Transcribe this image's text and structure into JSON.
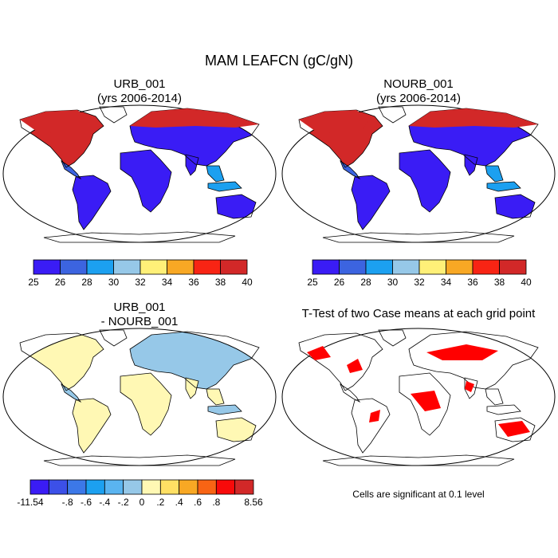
{
  "title": "MAM LEAFCN (gC/gN)",
  "chart_data": [
    {
      "type": "heatmap",
      "title": "URB_001",
      "subtitle": "(yrs 2006-2014)",
      "colorbar": {
        "labels": [
          "25",
          "26",
          "28",
          "30",
          "32",
          "34",
          "36",
          "38",
          "40"
        ],
        "colors": [
          "#3a1cf5",
          "#3c64e0",
          "#1ca0f0",
          "#96c8e8",
          "#fff078",
          "#f8a824",
          "#f82414",
          "#d22828"
        ]
      }
    },
    {
      "type": "heatmap",
      "title": "NOURB_001",
      "subtitle": "(yrs 2006-2014)",
      "colorbar": {
        "labels": [
          "25",
          "26",
          "28",
          "30",
          "32",
          "34",
          "36",
          "38",
          "40"
        ],
        "colors": [
          "#3a1cf5",
          "#3c64e0",
          "#1ca0f0",
          "#96c8e8",
          "#fff078",
          "#f8a824",
          "#f82414",
          "#d22828"
        ]
      }
    },
    {
      "type": "heatmap",
      "title": "URB_001",
      "subtitle": "- NOURB_001",
      "colorbar": {
        "labels": [
          "-11.54",
          "-.8",
          "-.6",
          "-.4",
          "-.2",
          "0",
          ".2",
          ".4",
          ".6",
          ".8",
          "8.56"
        ],
        "colors": [
          "#3a1cf5",
          "#3c50e8",
          "#3c78e8",
          "#1ca0f0",
          "#5ab4f0",
          "#96c8e8",
          "#fff8b4",
          "#ffe064",
          "#f8a824",
          "#f86414",
          "#f80a0a",
          "#d22828"
        ]
      }
    },
    {
      "type": "heatmap",
      "title": "T-Test of two Case means at each grid point",
      "note": "Cells are significant at 0.1 level",
      "colors": [
        "#ff0000"
      ]
    }
  ]
}
